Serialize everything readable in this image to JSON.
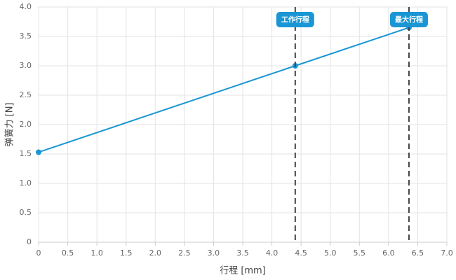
{
  "chart_data": {
    "type": "line",
    "x_label": "行程 [mm]",
    "y_label": "弹簧力 [N]",
    "x": [
      0,
      4.4,
      6.35
    ],
    "series": [
      {
        "name": "弹簧力",
        "color": "#1a96d4",
        "values": [
          1.53,
          3.0,
          3.65
        ]
      }
    ],
    "xlim": [
      0,
      7
    ],
    "ylim": [
      0,
      4
    ],
    "xticks": [
      0,
      0.5,
      {
        "value": 1,
        "label": "1.0"
      },
      1.5,
      {
        "value": 2,
        "label": "2.0"
      },
      2.5,
      {
        "value": 3,
        "label": "3.0"
      },
      3.5,
      {
        "value": 4,
        "label": "4.0"
      },
      4.5,
      {
        "value": 5,
        "label": "5.0"
      },
      5.5,
      {
        "value": 6,
        "label": "6.0"
      },
      6.5,
      {
        "value": 7,
        "label": "7.0"
      }
    ],
    "yticks": [
      0,
      0.5,
      {
        "value": 1,
        "label": "1.0"
      },
      1.5,
      {
        "value": 2,
        "label": "2.0"
      },
      2.5,
      {
        "value": 3,
        "label": "3.0"
      },
      3.5,
      {
        "value": 4,
        "label": "4.0"
      }
    ],
    "grid": true,
    "annotations": [
      {
        "x": 4.4,
        "label": "工作行程"
      },
      {
        "x": 6.35,
        "label": "最大行程"
      }
    ]
  }
}
